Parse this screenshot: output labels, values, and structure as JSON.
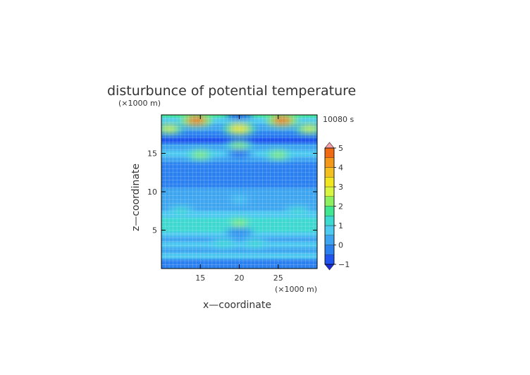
{
  "chart_data": {
    "type": "heatmap",
    "title": "disturbunce of potential temperature",
    "time_label": "10080 s",
    "xlabel": "x—coordinate",
    "ylabel": "z—coordinate",
    "x_unit": "(×1000 m)",
    "y_unit": "(×1000 m)",
    "xlim": [
      10,
      30
    ],
    "ylim": [
      0,
      20
    ],
    "x_ticks": [
      15,
      20,
      25
    ],
    "y_ticks": [
      5,
      10,
      15
    ],
    "grid": true,
    "colorbar": {
      "position": "right",
      "min": -1,
      "max": 5,
      "step": 0.5,
      "tick_labels": [
        "-1",
        "0",
        "1",
        "2",
        "3",
        "4",
        "5"
      ],
      "colors": [
        "#1b2bd6",
        "#1f55ee",
        "#2b80f0",
        "#3da5f0",
        "#4ec9f0",
        "#3cd9d0",
        "#40e690",
        "#8cf060",
        "#d8f640",
        "#f2e620",
        "#f4c020",
        "#f39818",
        "#f06a14",
        "#e83a12",
        "#e23030",
        "#f07080",
        "#f6a0a8"
      ]
    },
    "features": [
      {
        "type": "band",
        "z": 19.9,
        "value": 1.6
      },
      {
        "type": "band",
        "z": 19.4,
        "value": 0.5
      },
      {
        "type": "band",
        "z": 18.3,
        "value": 0.2
      },
      {
        "type": "band",
        "z": 17.5,
        "value": -0.4
      },
      {
        "type": "band",
        "z": 16.7,
        "value": -1.0
      },
      {
        "type": "band",
        "z": 15.8,
        "value": 0.3
      },
      {
        "type": "band",
        "z": 14.9,
        "value": 0.55
      },
      {
        "type": "band",
        "z": 14.2,
        "value": 0.0
      },
      {
        "type": "band",
        "z": 13.5,
        "value": -0.15
      },
      {
        "type": "band",
        "z": 11.5,
        "value": -0.3
      },
      {
        "type": "band",
        "z": 9.5,
        "value": 0.05
      },
      {
        "type": "band",
        "z": 8.0,
        "value": 0.2
      },
      {
        "type": "band",
        "z": 7.0,
        "value": 0.6
      },
      {
        "type": "band",
        "z": 6.2,
        "value": 1.1
      },
      {
        "type": "band",
        "z": 5.6,
        "value": 1.45
      },
      {
        "type": "band",
        "z": 5.0,
        "value": 1.1
      },
      {
        "type": "band",
        "z": 4.5,
        "value": 0.75
      },
      {
        "type": "band",
        "z": 3.8,
        "value": 0.15
      },
      {
        "type": "band",
        "z": 3.1,
        "value": 0.65
      },
      {
        "type": "band",
        "z": 2.4,
        "value": 0.2
      },
      {
        "type": "band",
        "z": 1.6,
        "value": 0.6
      },
      {
        "type": "band",
        "z": 0.9,
        "value": -0.2
      },
      {
        "type": "band",
        "z": 0.0,
        "value": -0.5
      },
      {
        "type": "blob",
        "x": 14.5,
        "z": 19.3,
        "value": 4.5
      },
      {
        "type": "blob",
        "x": 25.5,
        "z": 19.3,
        "value": 4.5
      },
      {
        "type": "blob",
        "x": 20.0,
        "z": 18.2,
        "value": 3.3
      },
      {
        "type": "blob",
        "x": 11.0,
        "z": 18.2,
        "value": 2.8
      },
      {
        "type": "blob",
        "x": 29.0,
        "z": 18.2,
        "value": 2.8
      },
      {
        "type": "blob",
        "x": 20.0,
        "z": 20.0,
        "value": -0.9
      },
      {
        "type": "blob",
        "x": 20.0,
        "z": 16.0,
        "value": 2.0
      },
      {
        "type": "blob",
        "x": 15.0,
        "z": 14.8,
        "value": 2.2
      },
      {
        "type": "blob",
        "x": 25.0,
        "z": 14.8,
        "value": 2.2
      },
      {
        "type": "blob",
        "x": 20.0,
        "z": 15.0,
        "value": -0.8
      },
      {
        "type": "blob",
        "x": 20.0,
        "z": 5.9,
        "value": 2.0
      },
      {
        "type": "blob",
        "x": 18.0,
        "z": 3.3,
        "value": 1.1
      },
      {
        "type": "blob",
        "x": 22.0,
        "z": 3.3,
        "value": 1.1
      },
      {
        "type": "blob",
        "x": 20.0,
        "z": 4.7,
        "value": -0.3
      },
      {
        "type": "blob",
        "x": 20.0,
        "z": 9.0,
        "value": 0.8
      },
      {
        "type": "blob",
        "x": 12.5,
        "z": 7.5,
        "value": 1.1
      },
      {
        "type": "blob",
        "x": 27.5,
        "z": 7.5,
        "value": 1.1
      }
    ]
  }
}
